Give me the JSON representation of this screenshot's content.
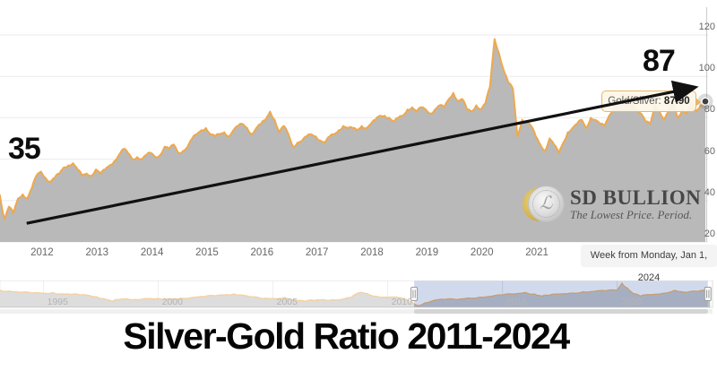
{
  "chart_data": {
    "type": "area",
    "title": "Silver-Gold Ratio 2011-2024",
    "legend": "off",
    "grid": "horizontal",
    "y_axis_position": "right",
    "y_ticks": [
      20,
      40,
      60,
      80,
      100,
      120
    ],
    "y_range": [
      20,
      137
    ],
    "x_ticks": [
      2012,
      2013,
      2014,
      2015,
      2016,
      2017,
      2018,
      2019,
      2020,
      2021
    ],
    "x_range": [
      2011.235,
      2024.1
    ],
    "series": [
      {
        "name": "Gold/Silver",
        "x_start": 2011.23,
        "x_step": 0.08333,
        "values": [
          43,
          31,
          37,
          34,
          41,
          43,
          41,
          46,
          52,
          54,
          51,
          49,
          51,
          53,
          56,
          57,
          58,
          55,
          52,
          53,
          52,
          55,
          53,
          55,
          57,
          59,
          62,
          65,
          63,
          60,
          61,
          60,
          62,
          63,
          61,
          62,
          66,
          65,
          67,
          63,
          64,
          66,
          70,
          72,
          74,
          75,
          72,
          71,
          72,
          73,
          71,
          74,
          76,
          77,
          75,
          72,
          75,
          77,
          79,
          83,
          79,
          73,
          76,
          72,
          66,
          68,
          69,
          71,
          72,
          71,
          69,
          68,
          71,
          72,
          74,
          76,
          75,
          75,
          74,
          76,
          75,
          77,
          79,
          81,
          81,
          80,
          78,
          80,
          81,
          84,
          85,
          83,
          85,
          84,
          82,
          84,
          86,
          85,
          89,
          92,
          88,
          89,
          84,
          83,
          86,
          84,
          87,
          95,
          118,
          111,
          103,
          97,
          94,
          71,
          79,
          78,
          76,
          71,
          67,
          64,
          70,
          67,
          63,
          68,
          73,
          75,
          77,
          79,
          75,
          80,
          79,
          77,
          76,
          81,
          85,
          88,
          91,
          89,
          87,
          84,
          82,
          78,
          77,
          86,
          83,
          79,
          83,
          87,
          80,
          84,
          82,
          87,
          83,
          86,
          87.9
        ]
      }
    ],
    "last_point": {
      "x": 2024.063,
      "value": 87.9
    },
    "tooltip": {
      "label": "Gold/Silver:",
      "value": "87.90"
    },
    "crosshair_label": "Week from Monday, Jan 1, 2024",
    "annotations": {
      "start_label": "35",
      "end_label": "87",
      "arrow": {
        "from": [
          2011.72,
          29
        ],
        "to": [
          2023.84,
          94.5
        ]
      }
    },
    "navigator": {
      "x_ticks": [
        1995,
        2000,
        2005,
        2010,
        2015,
        2020
      ],
      "x_range": [
        1993.1,
        2024.3
      ],
      "y_range": [
        26,
        120
      ],
      "selected_range": [
        2011.15,
        2023.95
      ],
      "series": {
        "name": "Gold/Silver full history",
        "x": [
          1993.1,
          1993.5,
          1994,
          1994.5,
          1995,
          1995.4,
          1995.8,
          1996.2,
          1996.6,
          1997,
          1997.3,
          1997.6,
          1998,
          1998.3,
          1998.6,
          1999,
          1999.4,
          1999.8,
          2000.2,
          2000.6,
          2001,
          2001.5,
          2002,
          2002.5,
          2003,
          2003.3,
          2003.6,
          2004,
          2004.5,
          2005,
          2005.5,
          2006,
          2006.4,
          2006.8,
          2007.2,
          2007.6,
          2008,
          2008.4,
          2008.8,
          2009.1,
          2009.5,
          2010,
          2010.5,
          2011,
          2011.3,
          2011.6,
          2012,
          2012.5,
          2013,
          2013.5,
          2014,
          2014.5,
          2015,
          2015.5,
          2016,
          2016.4,
          2016.7,
          2017,
          2017.5,
          2018,
          2018.5,
          2019,
          2019.5,
          2020,
          2020.2,
          2020.45,
          2020.7,
          2021,
          2021.5,
          2022,
          2022.5,
          2023,
          2023.5,
          2024.05
        ],
        "values": [
          88,
          85,
          80,
          78,
          77,
          79,
          75,
          73,
          71,
          69,
          65,
          58,
          48,
          54,
          57,
          55,
          58,
          56,
          54,
          57,
          59,
          62,
          65,
          68,
          72,
          75,
          71,
          64,
          58,
          58,
          62,
          52,
          48,
          51,
          54,
          54,
          55,
          62,
          80,
          76,
          66,
          63,
          61,
          46,
          32,
          42,
          51,
          55,
          54,
          60,
          63,
          66,
          71,
          74,
          80,
          74,
          67,
          69,
          74,
          78,
          82,
          84,
          86,
          88,
          114,
          95,
          76,
          67,
          72,
          77,
          88,
          80,
          84,
          88
        ]
      }
    },
    "colors": {
      "line": "#eda94e",
      "fill": "#b9b9b9",
      "gridline": "#ebebeb",
      "nav_selection": "rgba(102,133,194,0.30)",
      "nav_mask_out": "rgba(255,255,255,0.45)",
      "arrow": "#111111",
      "marker": "#3f3f3f",
      "crosshair": "#cfcfcf"
    }
  },
  "watermark": {
    "brand": "SD BULLION",
    "tagline": "The Lowest Price. Period.",
    "icon": "coin-icon"
  }
}
